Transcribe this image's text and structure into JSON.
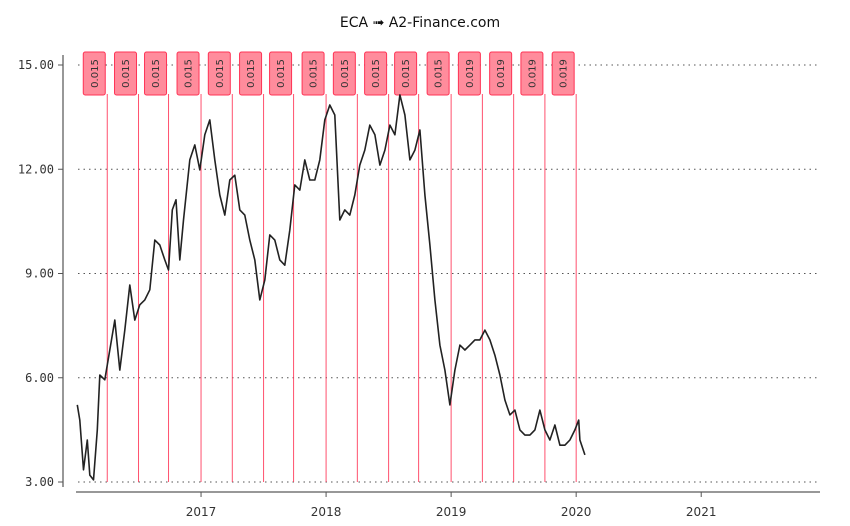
{
  "chart_data": {
    "type": "line",
    "title": "ECA ➟ A2-Finance.com",
    "xlabel": "",
    "ylabel": "",
    "xlim": [
      2016.0,
      2021.95
    ],
    "ylim": [
      3.0,
      15.0
    ],
    "yticks": [
      3.0,
      6.0,
      9.0,
      12.0,
      15.0
    ],
    "ytick_labels": [
      "3.00",
      "6.00",
      "9.00",
      "12.00",
      "15.00"
    ],
    "xticks": [
      2017,
      2018,
      2019,
      2020,
      2021
    ],
    "xtick_labels": [
      "2017",
      "2018",
      "2019",
      "2020",
      "2021"
    ],
    "grid": "horizontal dotted",
    "colors": {
      "price": "#222222",
      "dividend_line": "#ff3355",
      "dividend_label_fill": "#ff8c9c",
      "dividend_label_border": "#ff3355"
    },
    "series": [
      {
        "x": [
          2016.01,
          2016.03,
          2016.06,
          2016.09,
          2016.11,
          2016.14,
          2016.17,
          2016.19,
          2016.23,
          2016.27,
          2016.31,
          2016.35,
          2016.39,
          2016.43,
          2016.47,
          2016.51,
          2016.55,
          2016.59,
          2016.63,
          2016.67,
          2016.71,
          2016.74,
          2016.77,
          2016.8,
          2016.83,
          2016.86,
          2016.91,
          2016.95,
          2016.99,
          2017.03,
          2017.07,
          2017.11,
          2017.15,
          2017.19,
          2017.23,
          2017.27,
          2017.31,
          2017.35,
          2017.39,
          2017.43,
          2017.47,
          2017.51,
          2017.55,
          2017.59,
          2017.63,
          2017.67,
          2017.71,
          2017.75,
          2017.79,
          2017.83,
          2017.87,
          2017.91,
          2017.95,
          2017.99,
          2018.03,
          2018.07,
          2018.11,
          2018.15,
          2018.19,
          2018.23,
          2018.27,
          2018.31,
          2018.35,
          2018.39,
          2018.43,
          2018.47,
          2018.51,
          2018.55,
          2018.59,
          2018.63,
          2018.67,
          2018.71,
          2018.75,
          2018.79,
          2018.83,
          2018.87,
          2018.91,
          2018.95,
          2018.99,
          2019.03,
          2019.07,
          2019.11,
          2019.15,
          2019.19,
          2019.23,
          2019.27,
          2019.31,
          2019.35,
          2019.39,
          2019.43,
          2019.47,
          2019.51,
          2019.55,
          2019.59,
          2019.63,
          2019.67,
          2019.71,
          2019.75,
          2019.79,
          2019.83,
          2019.87,
          2019.91,
          2019.95,
          2019.99,
          2020.02,
          2020.03,
          2020.07
        ],
        "y": [
          5.22,
          4.78,
          3.35,
          4.21,
          3.2,
          3.06,
          4.5,
          6.08,
          5.94,
          6.8,
          7.66,
          6.22,
          7.37,
          8.67,
          7.66,
          8.1,
          8.24,
          8.53,
          9.96,
          9.82,
          9.39,
          9.1,
          10.83,
          11.12,
          9.39,
          10.54,
          12.27,
          12.7,
          11.98,
          12.99,
          13.42,
          12.27,
          11.26,
          10.68,
          11.69,
          11.83,
          10.83,
          10.68,
          9.96,
          9.39,
          8.24,
          8.81,
          10.11,
          9.96,
          9.39,
          9.24,
          10.25,
          11.55,
          11.4,
          12.27,
          11.69,
          11.69,
          12.27,
          13.42,
          13.85,
          13.56,
          10.54,
          10.83,
          10.68,
          11.26,
          12.12,
          12.55,
          13.27,
          12.99,
          12.12,
          12.55,
          13.27,
          12.99,
          14.14,
          13.56,
          12.27,
          12.55,
          13.13,
          11.26,
          9.82,
          8.24,
          6.94,
          6.22,
          5.22,
          6.22,
          6.94,
          6.8,
          6.94,
          7.09,
          7.09,
          7.37,
          7.09,
          6.65,
          6.08,
          5.36,
          4.93,
          5.07,
          4.5,
          4.35,
          4.35,
          4.5,
          5.07,
          4.5,
          4.21,
          4.64,
          4.06,
          4.06,
          4.21,
          4.5,
          4.78,
          4.21,
          3.78
        ]
      }
    ],
    "dividends": {
      "x": [
        2016.25,
        2016.5,
        2016.74,
        2017.0,
        2017.25,
        2017.5,
        2017.74,
        2018.0,
        2018.25,
        2018.5,
        2018.74,
        2019.0,
        2019.25,
        2019.5,
        2019.75,
        2020.0
      ],
      "labels": [
        "0.015",
        "0.015",
        "0.015",
        "0.015",
        "0.015",
        "0.015",
        "0.015",
        "0.015",
        "0.015",
        "0.015",
        "0.015",
        "0.015",
        "0.019",
        "0.019",
        "0.019",
        "0.019"
      ]
    }
  }
}
